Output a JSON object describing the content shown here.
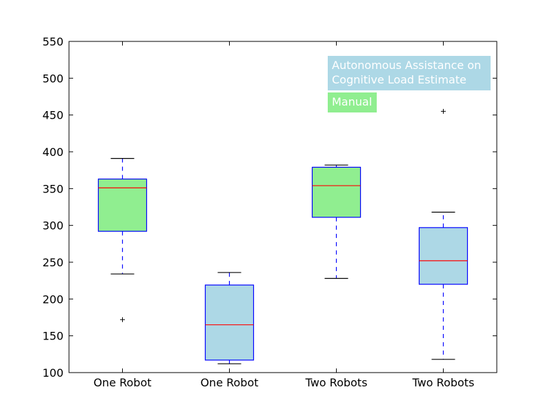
{
  "chart_data": {
    "type": "boxplot",
    "title": "",
    "xlabel": "",
    "ylabel": "",
    "ylim": [
      100,
      550
    ],
    "yticks": [
      100,
      150,
      200,
      250,
      300,
      350,
      400,
      450,
      500,
      550
    ],
    "grid": false,
    "legend_placement": "top-right",
    "categories": [
      "One Robot",
      "One Robot",
      "Two Robots",
      "Two Robots"
    ],
    "legend": [
      {
        "label": "Autonomous Assistance on Cognitive Load Estimate",
        "lines": [
          "Autonomous Assistance on",
          "Cognitive Load Estimate"
        ],
        "color": "#add8e6"
      },
      {
        "label": "Manual",
        "lines": [
          "Manual"
        ],
        "color": "#90ee90"
      }
    ],
    "boxes": [
      {
        "category": "One Robot",
        "group": "Manual",
        "color": "#90ee90",
        "whisker_low": 234,
        "q1": 292,
        "median": 351,
        "q3": 363,
        "whisker_high": 391,
        "outliers": [
          172
        ]
      },
      {
        "category": "One Robot",
        "group": "Autonomous Assistance on Cognitive Load Estimate",
        "color": "#add8e6",
        "whisker_low": 112,
        "q1": 117,
        "median": 165,
        "q3": 219,
        "whisker_high": 236,
        "outliers": []
      },
      {
        "category": "Two Robots",
        "group": "Manual",
        "color": "#90ee90",
        "whisker_low": 228,
        "q1": 311,
        "median": 354,
        "q3": 379,
        "whisker_high": 382,
        "outliers": []
      },
      {
        "category": "Two Robots",
        "group": "Autonomous Assistance on Cognitive Load Estimate",
        "color": "#add8e6",
        "whisker_low": 118,
        "q1": 220,
        "median": 252,
        "q3": 297,
        "whisker_high": 318,
        "outliers": [
          455
        ]
      }
    ],
    "colors": {
      "box_edge": "#0000ff",
      "median": "#ff0000",
      "whisker": "#0000ff",
      "outlier": "#000000"
    }
  }
}
